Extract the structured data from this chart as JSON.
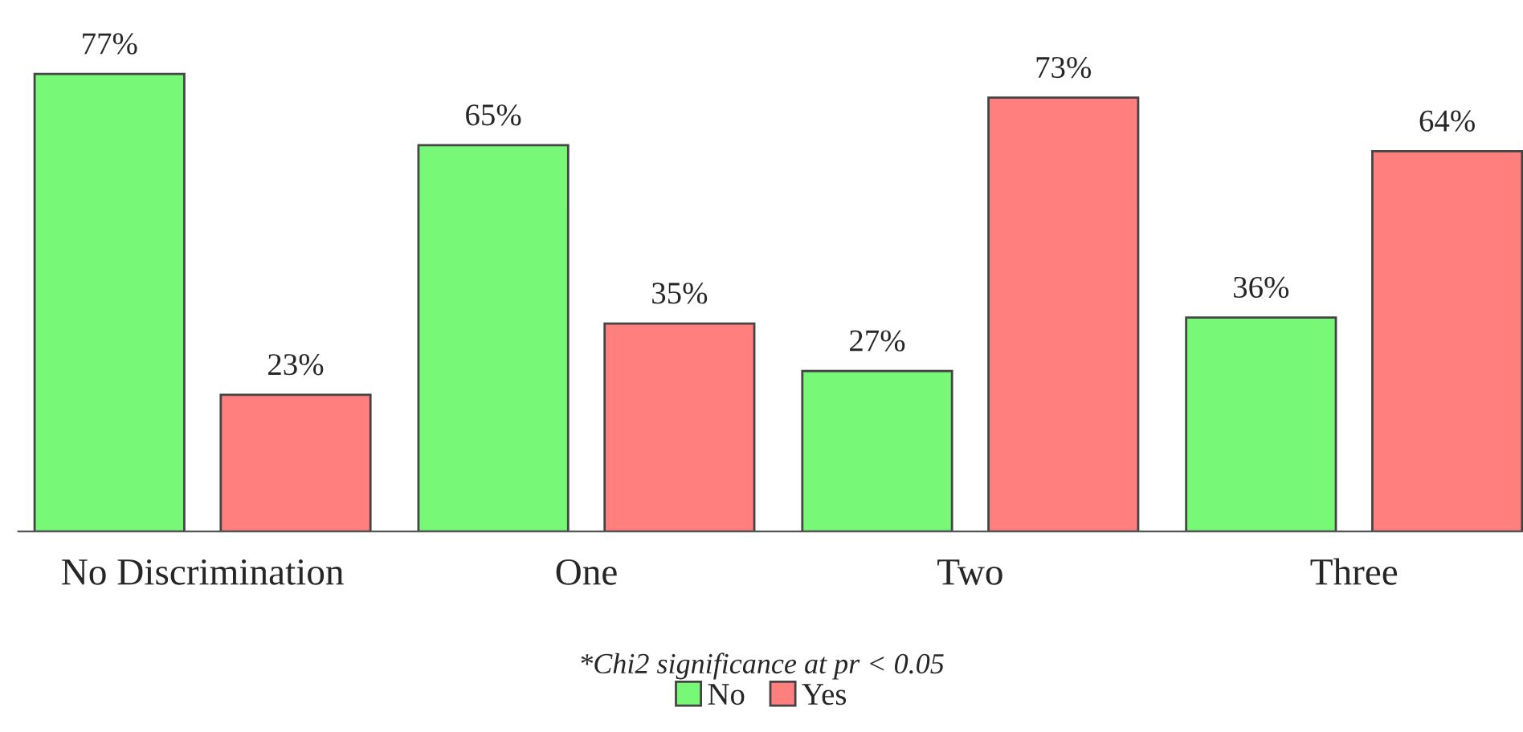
{
  "chart_data": {
    "type": "bar",
    "categories": [
      "No Discrimination",
      "One",
      "Two",
      "Three"
    ],
    "series": [
      {
        "name": "No",
        "color": "#77f977",
        "values": [
          77,
          65,
          27,
          36
        ],
        "value_labels": [
          "77%",
          "65%",
          "27%",
          "36%"
        ]
      },
      {
        "name": "Yes",
        "color": "#ff7f7f",
        "values": [
          23,
          35,
          73,
          64
        ],
        "value_labels": [
          "23%",
          "35%",
          "73%",
          "64%"
        ]
      }
    ],
    "annotations": [
      "*Chi2 significance at pr < 0.05"
    ],
    "legend": "bottom",
    "grid": false
  }
}
